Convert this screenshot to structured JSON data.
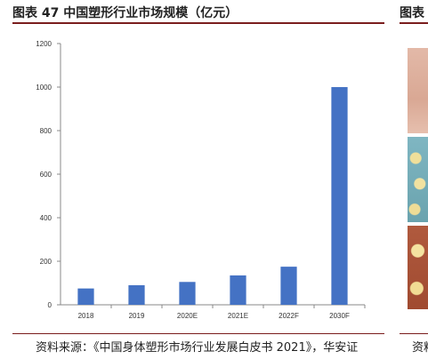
{
  "header": {
    "title": "图表 47 中国塑形行业市场规模（亿元）",
    "title_right": "图表"
  },
  "footer": {
    "source": "资料来源：《中国身体塑形市场行业发展白皮书 2021》，华安证",
    "source_right": "资料"
  },
  "right_panel": {
    "photos": [
      "skin-photo",
      "cells-photo-blue",
      "cells-photo-red"
    ]
  },
  "colors": {
    "bar": "#4472c4",
    "rule": "#7a1d1d"
  },
  "chart_data": {
    "type": "bar",
    "categories": [
      "2018",
      "2019",
      "2020E",
      "2021E",
      "2022F",
      "2030F"
    ],
    "values": [
      75,
      90,
      105,
      135,
      175,
      1000
    ],
    "ylim": [
      0,
      1200
    ],
    "yticks": [
      "0",
      "200",
      "400",
      "600",
      "800",
      "1000",
      "1200"
    ],
    "xlabel": "",
    "ylabel": "",
    "grid": false,
    "legend": "none"
  }
}
